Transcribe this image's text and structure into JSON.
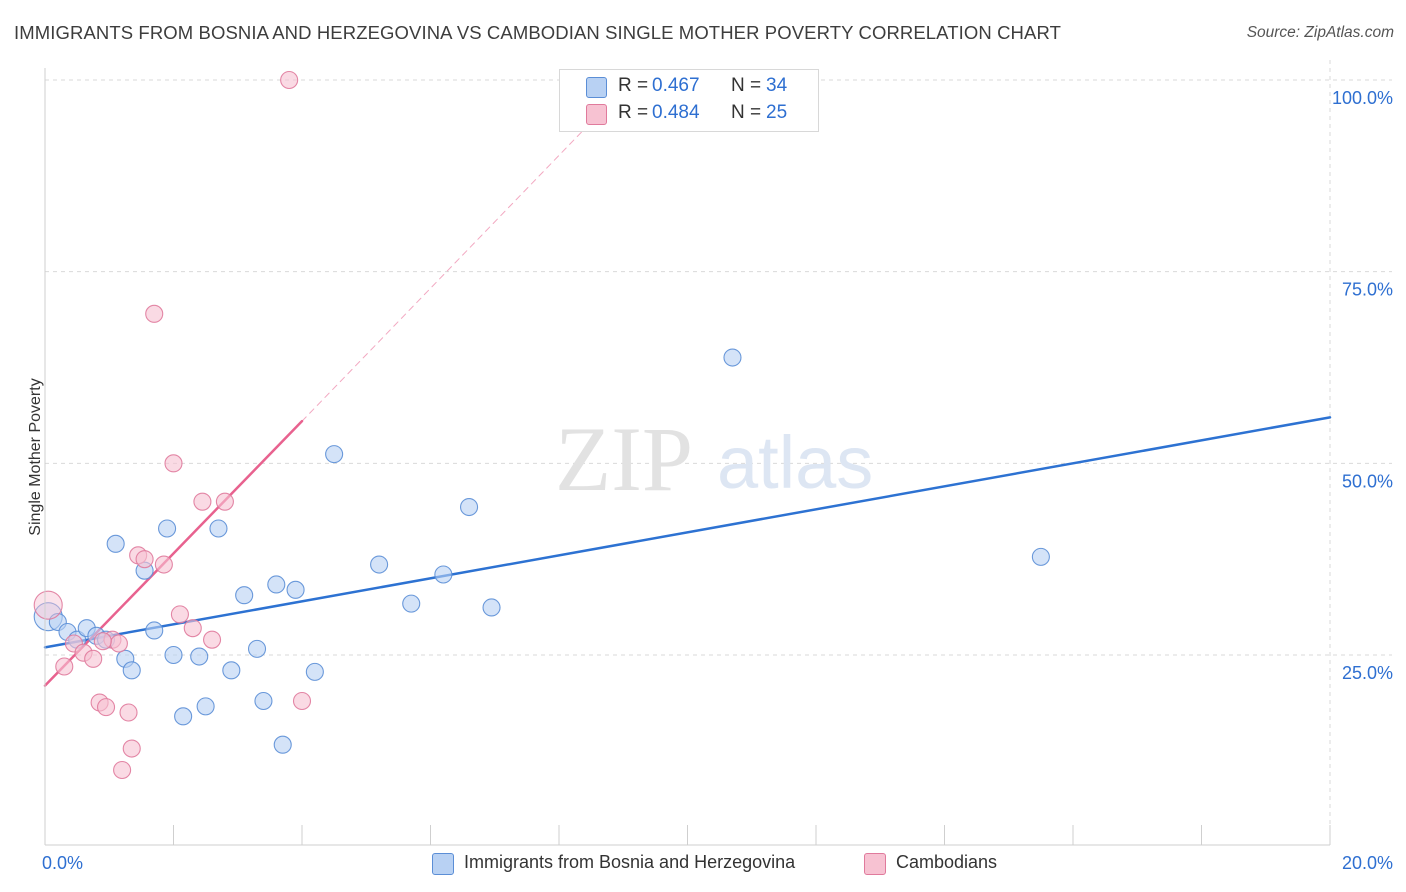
{
  "header": {
    "title": "IMMIGRANTS FROM BOSNIA AND HERZEGOVINA VS CAMBODIAN SINGLE MOTHER POVERTY CORRELATION CHART",
    "source": "Source: ZipAtlas.com"
  },
  "watermark": {
    "zip": "ZIP",
    "atlas": "atlas"
  },
  "colors": {
    "blue_fill": "#b8d1f3",
    "blue_stroke": "#5b8ed6",
    "blue_line": "#2d72d2",
    "pink_fill": "#f7c2d2",
    "pink_stroke": "#e07a9c",
    "pink_line": "#e8628f",
    "value_text": "#2e6fd1",
    "grid": "#d9d9d9"
  },
  "legend": {
    "rows": [
      {
        "r_label": "R =",
        "r_value": "0.467",
        "n_label": "N =",
        "n_value": "34"
      },
      {
        "r_label": "R =",
        "r_value": "0.484",
        "n_label": "N =",
        "n_value": "25"
      }
    ]
  },
  "bottom_legend": {
    "series_1": "Immigrants from Bosnia and Herzegovina",
    "series_2": "Cambodians"
  },
  "chart_data": {
    "type": "scatter",
    "title": "IMMIGRANTS FROM BOSNIA AND HERZEGOVINA VS CAMBODIAN SINGLE MOTHER POVERTY CORRELATION CHART",
    "xlabel": "",
    "ylabel": "Single Mother Poverty",
    "xlim": [
      0,
      20
    ],
    "ylim": [
      0,
      105
    ],
    "x_tick_labels": [
      "0.0%",
      "20.0%"
    ],
    "y_ticks": [
      25,
      50,
      75,
      100
    ],
    "y_tick_labels": [
      "25.0%",
      "50.0%",
      "75.0%",
      "100.0%"
    ],
    "grid": true,
    "series": [
      {
        "name": "Immigrants from Bosnia and Herzegovina",
        "color": "#5b8ed6",
        "points": [
          [
            0.05,
            30.0
          ],
          [
            0.2,
            29.3
          ],
          [
            0.35,
            28.0
          ],
          [
            0.5,
            27.0
          ],
          [
            0.65,
            28.5
          ],
          [
            0.8,
            27.5
          ],
          [
            0.95,
            27.0
          ],
          [
            1.1,
            39.5
          ],
          [
            1.25,
            24.5
          ],
          [
            1.35,
            23.0
          ],
          [
            1.55,
            36.0
          ],
          [
            1.7,
            28.2
          ],
          [
            1.9,
            41.5
          ],
          [
            2.0,
            25.0
          ],
          [
            2.15,
            17.0
          ],
          [
            2.4,
            24.8
          ],
          [
            2.5,
            18.3
          ],
          [
            2.7,
            41.5
          ],
          [
            2.9,
            23.0
          ],
          [
            3.1,
            32.8
          ],
          [
            3.3,
            25.8
          ],
          [
            3.4,
            19.0
          ],
          [
            3.6,
            34.2
          ],
          [
            3.7,
            13.3
          ],
          [
            3.9,
            33.5
          ],
          [
            4.2,
            22.8
          ],
          [
            4.5,
            51.2
          ],
          [
            5.2,
            36.8
          ],
          [
            5.7,
            31.7
          ],
          [
            6.2,
            35.5
          ],
          [
            6.6,
            44.3
          ],
          [
            6.95,
            31.2
          ],
          [
            10.7,
            63.8
          ],
          [
            15.5,
            37.8
          ]
        ]
      },
      {
        "name": "Cambodians",
        "color": "#e07a9c",
        "points": [
          [
            0.05,
            31.5
          ],
          [
            0.3,
            23.5
          ],
          [
            0.45,
            26.5
          ],
          [
            0.6,
            25.3
          ],
          [
            0.75,
            24.5
          ],
          [
            0.85,
            18.8
          ],
          [
            0.95,
            18.2
          ],
          [
            1.05,
            27.0
          ],
          [
            1.15,
            26.5
          ],
          [
            1.3,
            17.5
          ],
          [
            1.35,
            12.8
          ],
          [
            1.2,
            10.0
          ],
          [
            1.45,
            38.0
          ],
          [
            1.55,
            37.5
          ],
          [
            1.7,
            69.5
          ],
          [
            1.85,
            36.8
          ],
          [
            2.0,
            50.0
          ],
          [
            2.1,
            30.3
          ],
          [
            2.3,
            28.5
          ],
          [
            2.45,
            45.0
          ],
          [
            2.6,
            27.0
          ],
          [
            2.8,
            45.0
          ],
          [
            3.8,
            100.0
          ],
          [
            4.0,
            19.0
          ],
          [
            0.9,
            26.8
          ]
        ]
      }
    ],
    "trendlines": [
      {
        "series": "Immigrants from Bosnia and Herzegovina",
        "x0": 0,
        "y0": 26.0,
        "x1": 20,
        "y1": 56.0,
        "style": "solid"
      },
      {
        "series": "Cambodians",
        "x0": 0,
        "y0": 21.0,
        "x1": 4.0,
        "y1": 55.5,
        "style": "solid"
      },
      {
        "series": "Cambodians",
        "x0": 4.0,
        "y0": 55.5,
        "x1": 8.5,
        "y1": 94.5,
        "style": "dashed"
      }
    ]
  }
}
